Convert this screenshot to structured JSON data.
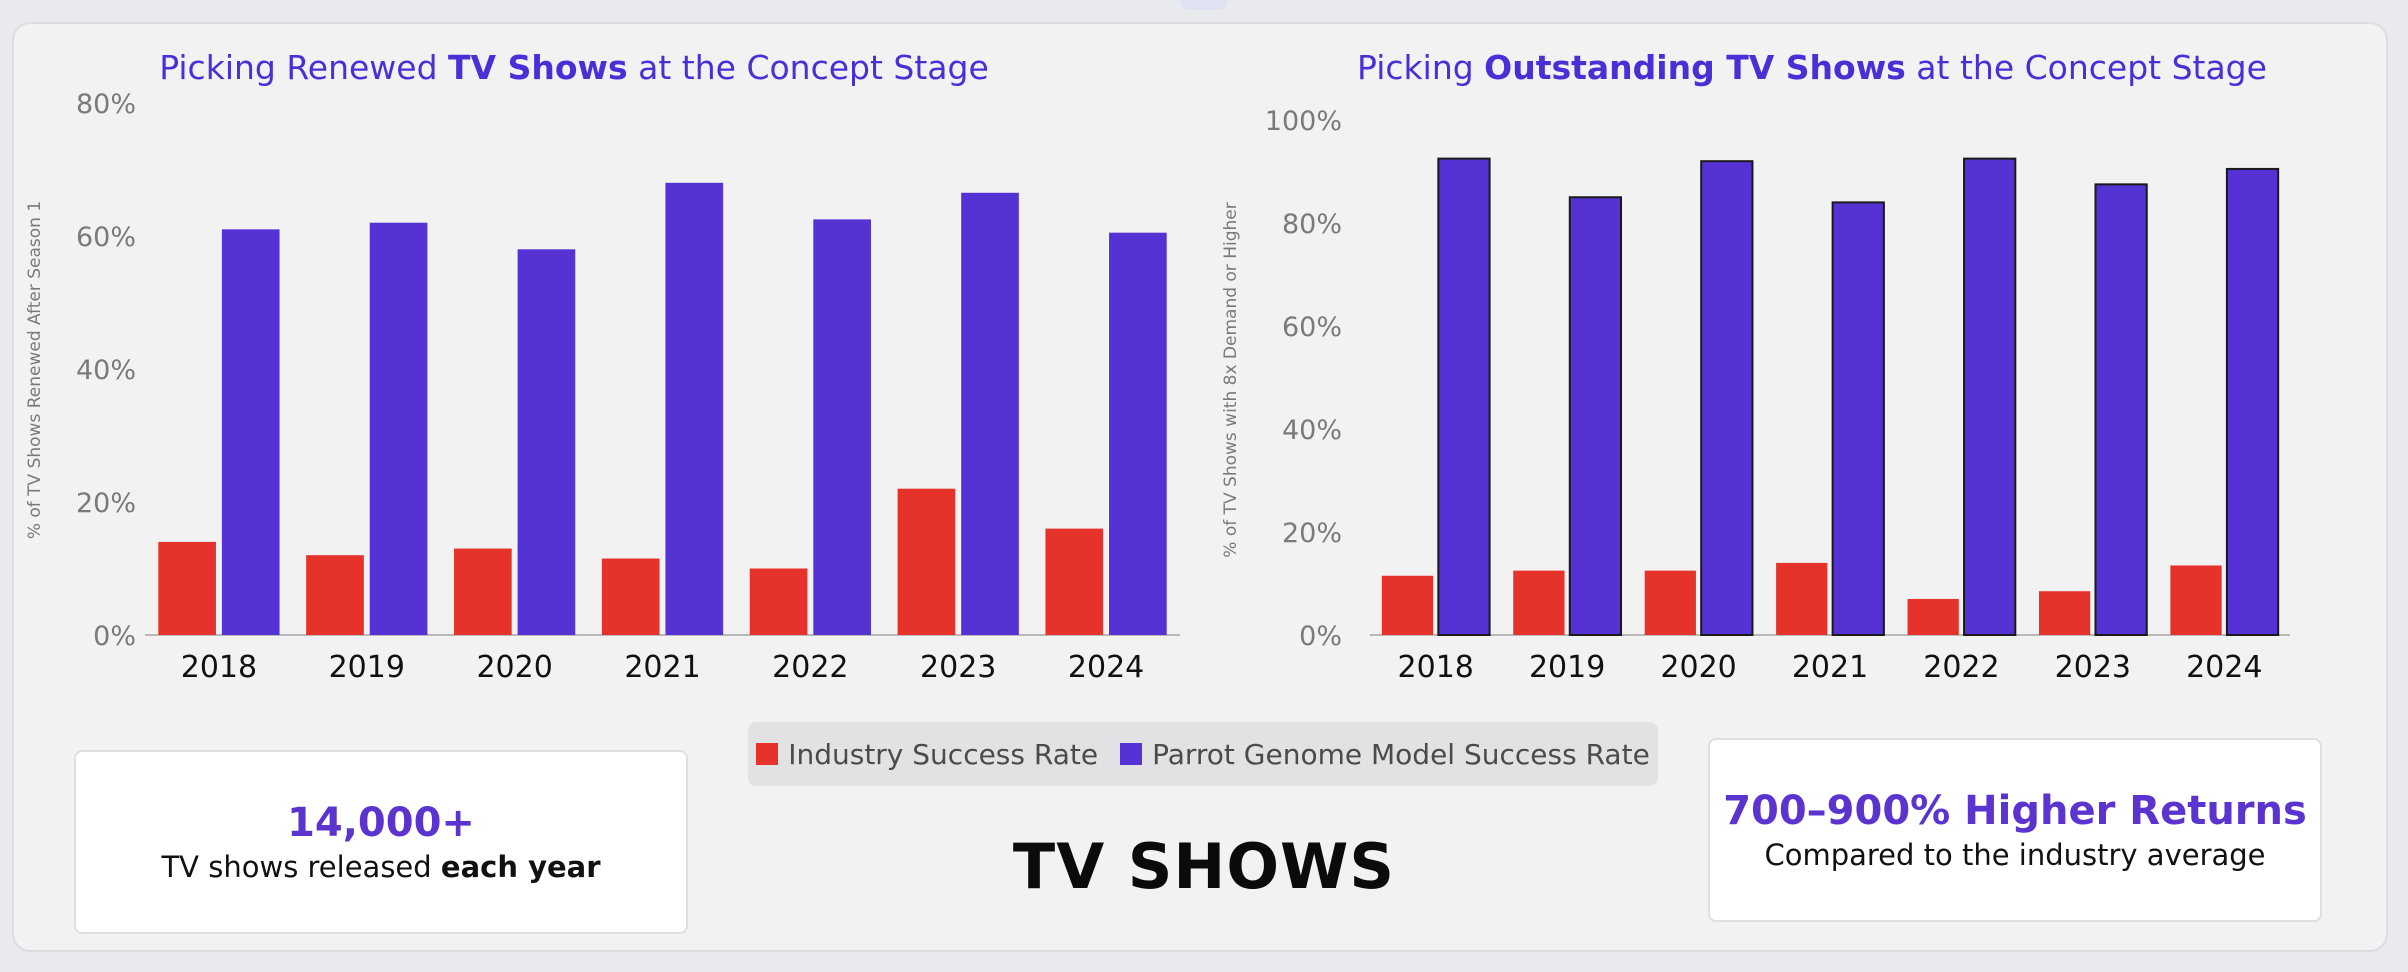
{
  "colors": {
    "industry": "#e5322a",
    "model": "#5432d3",
    "title": "#4a2ed6",
    "axis_text": "#7a7a7a",
    "tick_text": "#111111",
    "axis_line": "#b9b9b9"
  },
  "legend": {
    "industry_label": "Industry Success Rate",
    "model_label": "Parrot Genome Model Success Rate"
  },
  "left_card": {
    "value": "14,000+",
    "text_prefix": "TV shows released ",
    "text_bold": "each year"
  },
  "right_card": {
    "headline": "700–900% Higher Returns",
    "subtext": "Compared to the industry average"
  },
  "main_label": "TV SHOWS",
  "chart_data": [
    {
      "type": "bar",
      "title_parts": {
        "pre": "Picking Renewed ",
        "bold": "TV Shows",
        "post": " at the Concept Stage"
      },
      "ylabel": "% of TV Shows Renewed After Season 1",
      "xlabel": "",
      "categories": [
        "2018",
        "2019",
        "2020",
        "2021",
        "2022",
        "2023",
        "2024"
      ],
      "ylim": [
        0,
        80
      ],
      "yticks": [
        "0%",
        "20%",
        "40%",
        "60%",
        "80%"
      ],
      "series": [
        {
          "name": "Industry Success Rate",
          "values": [
            14,
            12,
            13,
            11.5,
            10,
            22,
            16
          ]
        },
        {
          "name": "Parrot Genome Model Success Rate",
          "values": [
            61,
            62,
            58,
            68,
            62.5,
            66.5,
            60.5
          ]
        }
      ],
      "bar_outline": false,
      "grid": false,
      "legend": "bottom-center"
    },
    {
      "type": "bar",
      "title_parts": {
        "pre": "Picking ",
        "bold": "Outstanding TV Shows",
        "post": " at the Concept Stage"
      },
      "ylabel": "% of TV Shows with 8x Demand or Higher",
      "xlabel": "",
      "categories": [
        "2018",
        "2019",
        "2020",
        "2021",
        "2022",
        "2023",
        "2024"
      ],
      "ylim": [
        0,
        100
      ],
      "yticks": [
        "0%",
        "20%",
        "40%",
        "60%",
        "80%",
        "100%"
      ],
      "series": [
        {
          "name": "Industry Success Rate",
          "values": [
            11.5,
            12.5,
            12.5,
            14,
            7,
            8.5,
            13.5
          ]
        },
        {
          "name": "Parrot Genome Model Success Rate",
          "values": [
            92.5,
            85,
            92,
            84,
            92.5,
            87.5,
            90.5
          ]
        }
      ],
      "bar_outline": true,
      "grid": false,
      "legend": "bottom-center"
    }
  ]
}
